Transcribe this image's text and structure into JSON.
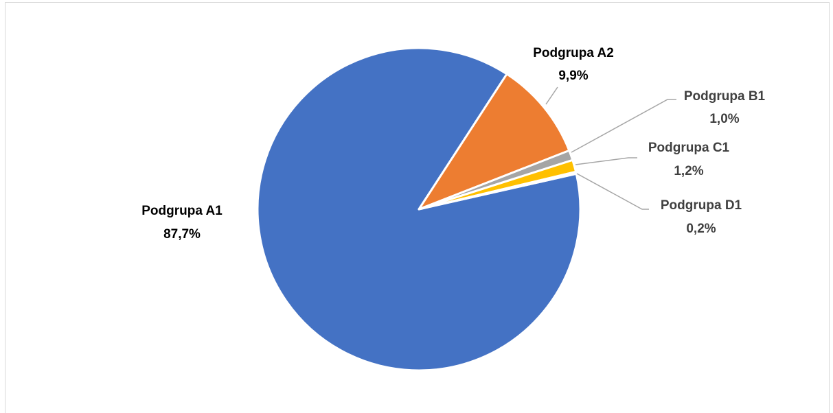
{
  "chart_data": {
    "type": "pie",
    "categories": [
      "Podgrupa A1",
      "Podgrupa A2",
      "Podgrupa B1",
      "Podgrupa C1",
      "Podgrupa D1"
    ],
    "values": [
      87.7,
      9.9,
      1.0,
      1.2,
      0.2
    ],
    "value_labels": [
      "87,7%",
      "9,9%",
      "1,0%",
      "1,2%",
      "0,2%"
    ],
    "colors": [
      "#4472c4",
      "#ed7d31",
      "#a5a5a5",
      "#ffc000",
      "#5b9bd5"
    ]
  }
}
